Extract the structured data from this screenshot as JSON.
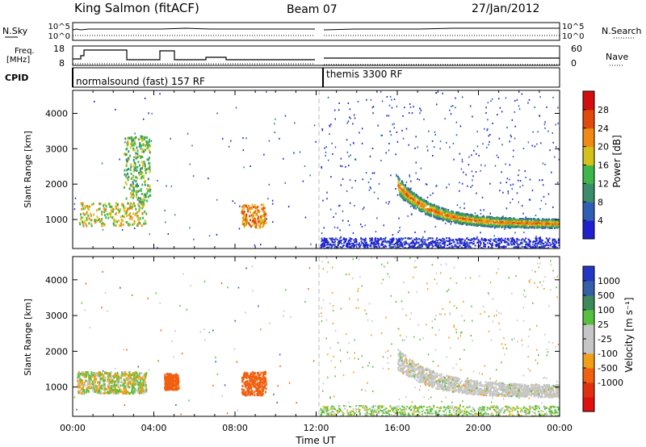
{
  "header": {
    "station": "King Salmon (fitACF)",
    "beam": "Beam 07",
    "date": "27/Jan/2012"
  },
  "labels": {
    "nsky": "N.Sky",
    "nsearch": "N.Search",
    "freq_line1": "Freq.",
    "freq_line2": "[MHz]",
    "nave": "Nave",
    "cpid": "CPID",
    "cpid_mode_1": "normalsound (fast) 157 RF",
    "cpid_mode_2": "themis 3300 RF",
    "tick_1e5_left": "10^5",
    "tick_1e0_left": "10^0",
    "tick_1e5_right": "10^5",
    "tick_1e0_right": "10^0",
    "freq_tick_hi": "18",
    "freq_tick_lo": "8",
    "nave_tick_hi": "60",
    "nave_tick_lo": "0"
  },
  "colors": {
    "power_scale": [
      "#1f1fd0",
      "#2f5fb4",
      "#3a8c6a",
      "#3fb64a",
      "#d4c21a",
      "#f08a12",
      "#e24a0c",
      "#d40e0e"
    ],
    "velocity_scale": [
      "#2437c4",
      "#3560a8",
      "#3c8a5a",
      "#58c040",
      "#c6c6c6",
      "#c6c6c6",
      "#f0a018",
      "#f06010",
      "#e03010",
      "#e01010"
    ]
  },
  "chart_data": [
    {
      "type": "heatmap",
      "name": "power",
      "ylabel": "Slant Range [km]",
      "xlabel": "Time UT",
      "x_ticks": [
        "00:00",
        "04:00",
        "08:00",
        "12:00",
        "16:00",
        "20:00",
        "00:00"
      ],
      "y_ticks": [
        "1000",
        "2000",
        "3000",
        "4000"
      ],
      "xlim_hours": [
        0,
        24
      ],
      "ylim_km": [
        180,
        4650
      ],
      "colorbar_label": "Power [dB]",
      "colorbar_ticks": [
        "4",
        "8",
        "12",
        "16",
        "20",
        "24",
        "28"
      ],
      "features": [
        {
          "t0": 0.3,
          "t1": 3.6,
          "r0": 850,
          "r1": 1500,
          "level": 4
        },
        {
          "t0": 2.5,
          "t1": 3.8,
          "r0": 1500,
          "r1": 3400,
          "level": 3
        },
        {
          "t0": 8.3,
          "t1": 9.5,
          "r0": 800,
          "r1": 1450,
          "level": 5
        },
        {
          "t0": 16.0,
          "t1": 24.0,
          "r0": 750,
          "r1": 2100,
          "level": 5
        },
        {
          "t0": 12.2,
          "t1": 24.0,
          "r0": 200,
          "r1": 500,
          "level": 1
        }
      ]
    },
    {
      "type": "heatmap",
      "name": "velocity",
      "ylabel": "Slant Range [km]",
      "xlabel": "Time UT",
      "x_ticks": [
        "00:00",
        "04:00",
        "08:00",
        "12:00",
        "16:00",
        "20:00",
        "00:00"
      ],
      "y_ticks": [
        "1000",
        "2000",
        "3000",
        "4000"
      ],
      "xlim_hours": [
        0,
        24
      ],
      "ylim_km": [
        180,
        4650
      ],
      "colorbar_label": "Velocity [m s⁻¹]",
      "colorbar_ticks": [
        "1000",
        "500",
        "100",
        "25",
        "-25",
        "-100",
        "-500",
        "-1000"
      ],
      "features": [
        {
          "t0": 0.2,
          "t1": 3.6,
          "r0": 850,
          "r1": 1450,
          "vel": 0
        },
        {
          "t0": 4.5,
          "t1": 5.2,
          "r0": 950,
          "r1": 1400,
          "vel": -300
        },
        {
          "t0": 8.3,
          "t1": 9.5,
          "r0": 800,
          "r1": 1450,
          "vel": -300
        },
        {
          "t0": 16.0,
          "t1": 24.0,
          "r0": 750,
          "r1": 1900,
          "vel": 0
        },
        {
          "t0": 12.2,
          "t1": 24.0,
          "r0": 200,
          "r1": 500,
          "vel": 60
        }
      ]
    }
  ]
}
